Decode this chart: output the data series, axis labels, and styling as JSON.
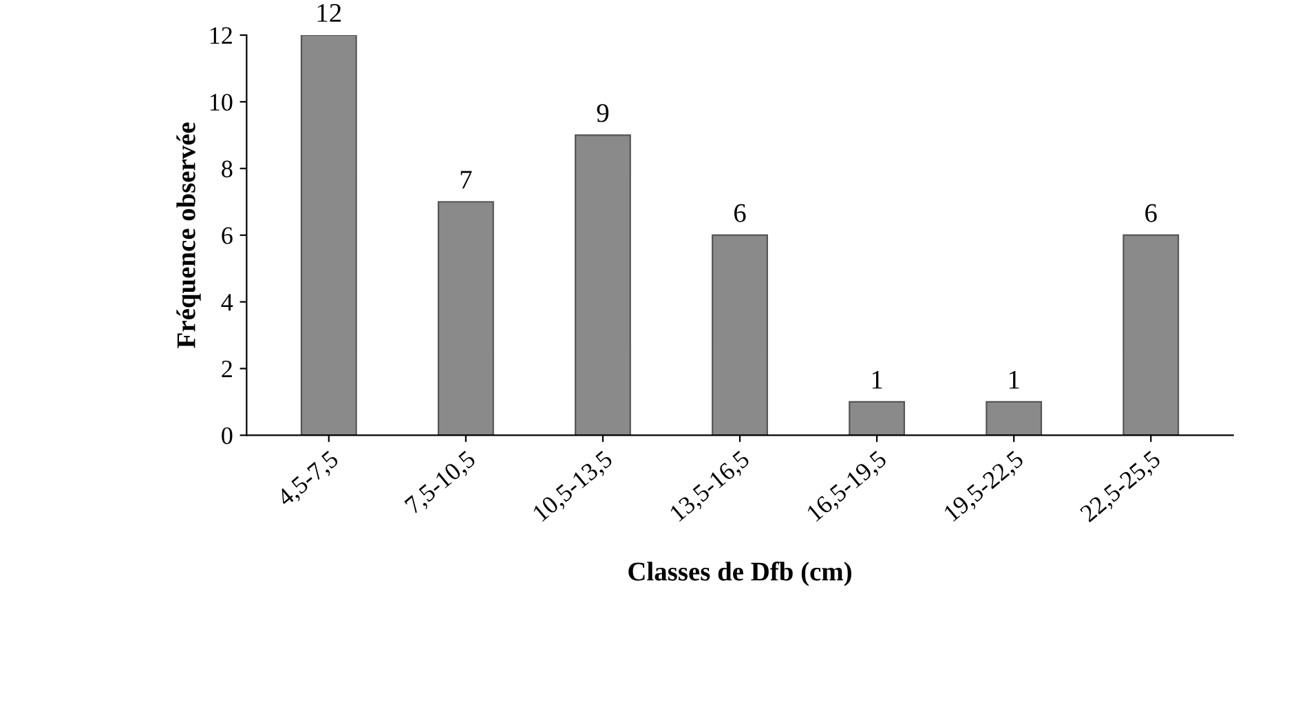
{
  "chart_data": {
    "type": "bar",
    "xlabel": "Classes de Dfb (cm)",
    "ylabel": "Fréquence observée",
    "categories": [
      "4,5-7,5",
      "7,5-10,5",
      "10,5-13,5",
      "13,5-16,5",
      "16,5-19,5",
      "19,5-22,5",
      "22,5-25,5"
    ],
    "values": [
      12,
      7,
      9,
      6,
      1,
      1,
      6
    ],
    "color": "#8a8a8a",
    "ylim": [
      0,
      12
    ],
    "yticks": [
      0,
      2,
      4,
      6,
      8,
      10,
      12
    ],
    "data_labels": true,
    "grid": false,
    "legend": false
  }
}
